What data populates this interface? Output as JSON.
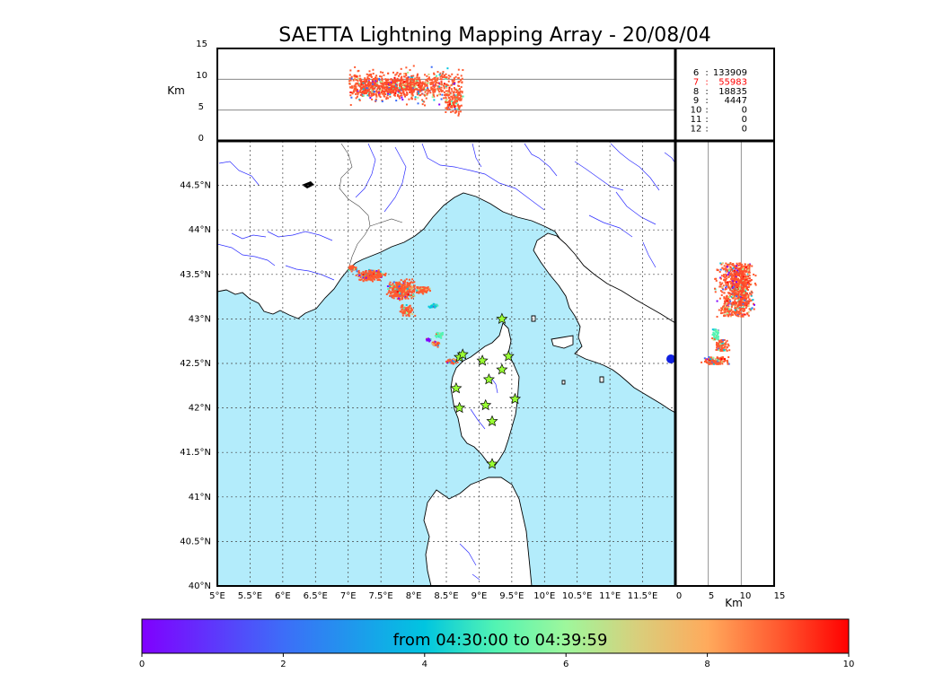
{
  "title": "SAETTA Lightning Mapping Array - 20/08/04",
  "top_panel": {
    "ylabel": "Km",
    "y_ticks": [
      "15",
      "10",
      "5",
      "0"
    ]
  },
  "side_panel": {
    "xlabel": "Km",
    "x_ticks": [
      "0",
      "5",
      "10",
      "15"
    ]
  },
  "map": {
    "lat_ticks": [
      "44.5°N",
      "44°N",
      "43.5°N",
      "43°N",
      "42.5°N",
      "42°N",
      "41.5°N",
      "41°N",
      "40.5°N",
      "40°N"
    ],
    "lon_ticks": [
      "5°E",
      "5.5°E",
      "6°E",
      "6.5°E",
      "7°E",
      "7.5°E",
      "8°E",
      "8.5°E",
      "9°E",
      "9.5°E",
      "10°E",
      "10.5°E",
      "11°E",
      "11.5°E"
    ],
    "sea_color": "#b3ecfb",
    "land_color": "#ffffff",
    "river_color": "#2d2dff",
    "station_marker": "star",
    "station_color": "#99ff33",
    "station_count": 13
  },
  "stats": {
    "rows": [
      {
        "label": "6",
        "sep": ":",
        "value": "133909",
        "highlight": false
      },
      {
        "label": "7",
        "sep": ":",
        "value": "55983",
        "highlight": true
      },
      {
        "label": "8",
        "sep": ":",
        "value": "18835",
        "highlight": false
      },
      {
        "label": "9",
        "sep": ":",
        "value": "4447",
        "highlight": false
      },
      {
        "label": "10",
        "sep": ":",
        "value": "0",
        "highlight": false
      },
      {
        "label": "11",
        "sep": ":",
        "value": "0",
        "highlight": false
      },
      {
        "label": "12",
        "sep": ":",
        "value": "0",
        "highlight": false
      }
    ],
    "highlight_color": "#ff0000"
  },
  "colorbar": {
    "label": "from 04:30:00 to 04:39:59",
    "ticks": [
      "0",
      "2",
      "4",
      "6",
      "8",
      "10"
    ],
    "range": [
      0,
      10
    ]
  },
  "chart_data": {
    "type": "scatter",
    "title": "SAETTA Lightning Mapping Array - 20/08/04",
    "x_range_lon": [
      5,
      12
    ],
    "y_range_lat": [
      40,
      45
    ],
    "altitude_range_km": [
      0,
      15
    ],
    "color_scale": "minutes 0-10 (rainbow)",
    "grid": true,
    "lightning_clusters": [
      {
        "name": "",
        "lon_center": 7.9,
        "lat_center": 43.4,
        "time_min": 8.8
      },
      {
        "name": "",
        "lon_center": 8.4,
        "lat_center": 42.8,
        "time_min": 5.0
      },
      {
        "name": "",
        "lon_center": 8.65,
        "lat_center": 42.58,
        "time_min": 9.0
      }
    ],
    "stations": [
      {
        "lon": 9.35,
        "lat": 43.0
      },
      {
        "lon": 8.7,
        "lat": 42.57
      },
      {
        "lon": 8.75,
        "lat": 42.6
      },
      {
        "lon": 9.05,
        "lat": 42.53
      },
      {
        "lon": 9.45,
        "lat": 42.58
      },
      {
        "lon": 9.35,
        "lat": 42.43
      },
      {
        "lon": 9.15,
        "lat": 42.32
      },
      {
        "lon": 8.65,
        "lat": 42.22
      },
      {
        "lon": 9.55,
        "lat": 42.1
      },
      {
        "lon": 8.7,
        "lat": 42.0
      },
      {
        "lon": 9.1,
        "lat": 42.03
      },
      {
        "lon": 9.2,
        "lat": 41.85
      },
      {
        "lon": 9.2,
        "lat": 41.37
      }
    ],
    "stats_by_station_count": [
      {
        "stations": 6,
        "sources": 133909
      },
      {
        "stations": 7,
        "sources": 55983
      },
      {
        "stations": 8,
        "sources": 18835
      },
      {
        "stations": 9,
        "sources": 4447
      },
      {
        "stations": 10,
        "sources": 0
      },
      {
        "stations": 11,
        "sources": 0
      },
      {
        "stations": 12,
        "sources": 0
      }
    ]
  }
}
